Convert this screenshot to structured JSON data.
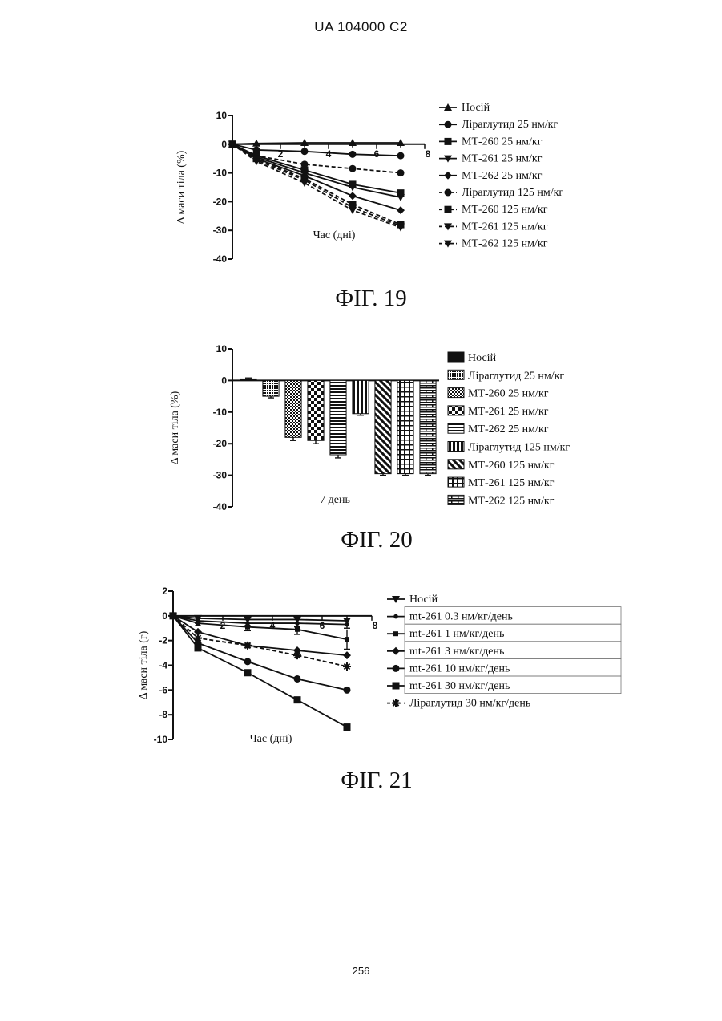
{
  "page": {
    "header": "UA   104000   C2",
    "page_number": "256"
  },
  "chart_data": [
    {
      "type": "line",
      "caption": "ФІГ. 19",
      "xlabel": "Час (дні)",
      "ylabel": "Δ  маси тіла (%)",
      "xlim": [
        0,
        8
      ],
      "ylim": [
        -40,
        10
      ],
      "x_ticks": [
        "2",
        "4",
        "6",
        "8"
      ],
      "y_ticks": [
        "10",
        "0",
        "-10",
        "-20",
        "-30",
        "-40"
      ],
      "x": [
        0,
        1,
        3,
        5,
        7
      ],
      "series": [
        {
          "name": "Носій",
          "marker": "triangle-up",
          "dashed": false,
          "values": [
            0,
            0.3,
            0.5,
            0.5,
            0.5
          ]
        },
        {
          "name": "Ліраглутид 25 нм/кг",
          "marker": "circle",
          "dashed": false,
          "values": [
            0,
            -2,
            -2.5,
            -3.5,
            -4
          ]
        },
        {
          "name": "МТ-260 25 нм/кг",
          "marker": "square",
          "dashed": false,
          "values": [
            0,
            -4,
            -9,
            -14,
            -17
          ]
        },
        {
          "name": "МТ-261 25 нм/кг",
          "marker": "triangle-down",
          "dashed": false,
          "values": [
            0,
            -4.5,
            -10,
            -15,
            -18.5
          ]
        },
        {
          "name": "МТ-262 25 нм/кг",
          "marker": "diamond",
          "dashed": false,
          "values": [
            0,
            -5,
            -11,
            -18,
            -23
          ]
        },
        {
          "name": "Ліраглутид 125 нм/кг",
          "marker": "circle",
          "dashed": true,
          "values": [
            0,
            -4,
            -7,
            -8.5,
            -10
          ]
        },
        {
          "name": "МТ-260 125 нм/кг",
          "marker": "square",
          "dashed": true,
          "values": [
            0,
            -5,
            -12,
            -21,
            -28
          ]
        },
        {
          "name": "МТ-261 125 нм/кг",
          "marker": "triangle-down",
          "dashed": true,
          "values": [
            0,
            -5.5,
            -12.5,
            -22,
            -28.5
          ]
        },
        {
          "name": "МТ-262 125 нм/кг",
          "marker": "triangle-down",
          "dashed": true,
          "values": [
            0,
            -6,
            -13.5,
            -23,
            -29
          ]
        }
      ]
    },
    {
      "type": "bar",
      "caption": "ФІГ. 20",
      "xlabel": "7 день",
      "ylabel": "Δ  маси тіла (%)",
      "ylim": [
        -40,
        10
      ],
      "y_ticks": [
        "10",
        "0",
        "-10",
        "-20",
        "-30",
        "-40"
      ],
      "categories": [
        "Носій",
        "Ліраглутид 25 нм/кг",
        "МТ-260 25 нм/кг",
        "МТ-261 25 нм/кг",
        "МТ-262 25 нм/кг",
        "Ліраглутид 125 нм/кг",
        "МТ-260 125 нм/кг",
        "МТ-261 125 нм/кг",
        "МТ-262 125 нм/кг"
      ],
      "values": [
        0.5,
        -5,
        -18,
        -19,
        -23.5,
        -10.5,
        -29.5,
        -29.5,
        -29.5
      ],
      "errors": [
        0.3,
        0.5,
        1,
        1,
        1,
        0.5,
        0.5,
        0.5,
        0.5
      ],
      "patterns": [
        "solid",
        "fine-dots",
        "checker-fine",
        "checker-coarse",
        "hstripes",
        "vstripes",
        "diagonal",
        "brick-v",
        "brick-h"
      ]
    },
    {
      "type": "line",
      "caption": "ФІГ. 21",
      "xlabel": "Час (дні)",
      "ylabel": "Δ  маси тіла (г)",
      "xlim": [
        0,
        8
      ],
      "ylim": [
        -10,
        2
      ],
      "x_ticks": [
        "2",
        "4",
        "6",
        "8"
      ],
      "y_ticks": [
        "2",
        "0",
        "-2",
        "-4",
        "-6",
        "-8",
        "-10"
      ],
      "x": [
        0,
        1,
        3,
        5,
        7
      ],
      "series": [
        {
          "name": "Носій",
          "marker": "triangle-down",
          "dashed": false,
          "values": [
            0,
            -0.2,
            -0.3,
            -0.3,
            -0.4
          ]
        },
        {
          "name": "mt-261 0.3 нм/кг/день",
          "marker": "circle-small",
          "dashed": false,
          "values": [
            0,
            -0.4,
            -0.6,
            -0.6,
            -0.7
          ],
          "errors": [
            0,
            0.2,
            0.2,
            0.3,
            0.3
          ]
        },
        {
          "name": "mt-261 1 нм/кг/день",
          "marker": "square-small",
          "dashed": false,
          "values": [
            0,
            -0.6,
            -0.9,
            -1.1,
            -1.9
          ],
          "errors": [
            0,
            0.2,
            0.3,
            0.4,
            0.8
          ]
        },
        {
          "name": "mt-261 3 нм/кг/день",
          "marker": "diamond",
          "dashed": false,
          "values": [
            0,
            -1.3,
            -2.4,
            -2.8,
            -3.2
          ]
        },
        {
          "name": "mt-261 10 нм/кг/день",
          "marker": "circle",
          "dashed": false,
          "values": [
            0,
            -2.2,
            -3.7,
            -5.1,
            -6.0
          ]
        },
        {
          "name": "mt-261 30 нм/кг/день",
          "marker": "square",
          "dashed": false,
          "values": [
            0,
            -2.6,
            -4.6,
            -6.8,
            -9.0
          ]
        },
        {
          "name": "Ліраглутид 30 нм/кг/день",
          "marker": "asterisk",
          "dashed": true,
          "values": [
            0,
            -1.8,
            -2.4,
            -3.2,
            -4.1
          ]
        }
      ]
    }
  ]
}
